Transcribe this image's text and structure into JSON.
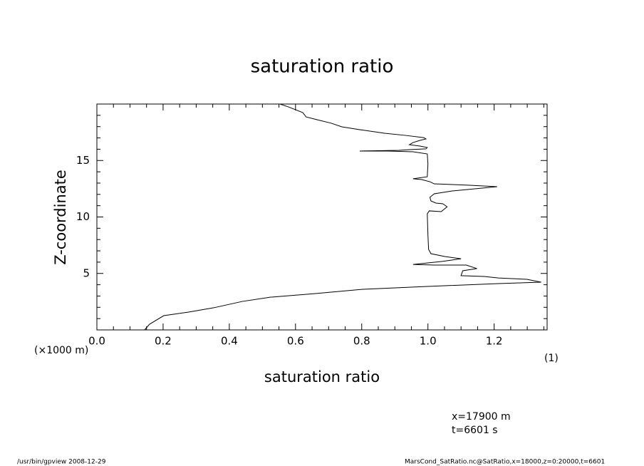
{
  "chart_data": {
    "type": "line",
    "title": "saturation ratio",
    "x_label": "saturation ratio",
    "y_label": "Z-coordinate",
    "y_unit": "(×1000 m)",
    "x_unit": "(1)",
    "annotations": [
      "x=17900 m",
      "t=6601 s"
    ],
    "footer_left": "/usr/bin/gpview  2008-12-29",
    "footer_right": "MarsCond_SatRatio.nc@SatRatio,x=18000,z=0:20000,t=6601",
    "color": "#000000",
    "xlim": [
      0,
      1.36
    ],
    "ylim": [
      0,
      20
    ],
    "xticks": [
      {
        "value": 0,
        "label": "0.0"
      },
      0.2,
      0.4,
      0.6,
      0.8,
      {
        "value": 1,
        "label": "1.0"
      },
      1.2
    ],
    "yticks": [
      5,
      10,
      15
    ],
    "xminorticks": [
      0.05,
      0.1,
      0.15,
      0.25,
      0.3,
      0.35,
      0.45,
      0.5,
      0.55,
      0.65,
      0.7,
      0.75,
      0.85,
      0.9,
      0.95,
      1.05,
      1.1,
      1.15,
      1.25,
      1.3,
      1.35
    ],
    "yminorticks": [
      1,
      2,
      3,
      4,
      6,
      7,
      8,
      9,
      11,
      12,
      13,
      14,
      16,
      17,
      18,
      19
    ],
    "x": [
      0.144,
      0.159,
      0.202,
      0.277,
      0.353,
      0.439,
      0.525,
      0.654,
      0.804,
      0.998,
      1.213,
      1.342,
      1.299,
      1.213,
      1.17,
      1.1,
      1.105,
      1.148,
      1.116,
      1.02,
      0.955,
      1.041,
      1.1,
      1.051,
      1.009,
      1.002,
      1.0,
      0.998,
      1.004,
      1.04,
      1.058,
      1.045,
      1.024,
      1.009,
      1.006,
      1.019,
      1.073,
      1.209,
      1.127,
      1.019,
      1.006,
      0.981,
      0.955,
      0.998,
      1.0,
      0.998,
      0.955,
      0.88,
      0.794,
      0.912,
      0.944,
      0.994,
      0.998,
      0.976,
      0.944,
      0.955,
      0.976,
      0.994,
      0.987,
      0.933,
      0.869,
      0.794,
      0.74,
      0.708,
      0.665,
      0.632,
      0.622,
      0.578,
      0.553
    ],
    "values": [
      0,
      0.5,
      1.26,
      1.58,
      1.96,
      2.52,
      2.9,
      3.2,
      3.6,
      3.85,
      4.1,
      4.23,
      4.48,
      4.6,
      4.73,
      4.8,
      5.24,
      5.43,
      5.74,
      5.74,
      5.8,
      6.06,
      6.3,
      6.5,
      6.75,
      7.13,
      8.4,
      10.28,
      10.54,
      10.47,
      10.9,
      11.17,
      11.23,
      11.42,
      11.74,
      12.05,
      12.3,
      12.68,
      12.81,
      12.93,
      13.12,
      13.31,
      13.38,
      13.56,
      14.7,
      15.58,
      15.77,
      15.84,
      15.84,
      15.9,
      15.96,
      16.03,
      16.15,
      16.28,
      16.4,
      16.59,
      16.78,
      16.91,
      17.03,
      17.22,
      17.41,
      17.73,
      17.98,
      18.3,
      18.61,
      18.86,
      19.24,
      19.75,
      20.0
    ]
  }
}
